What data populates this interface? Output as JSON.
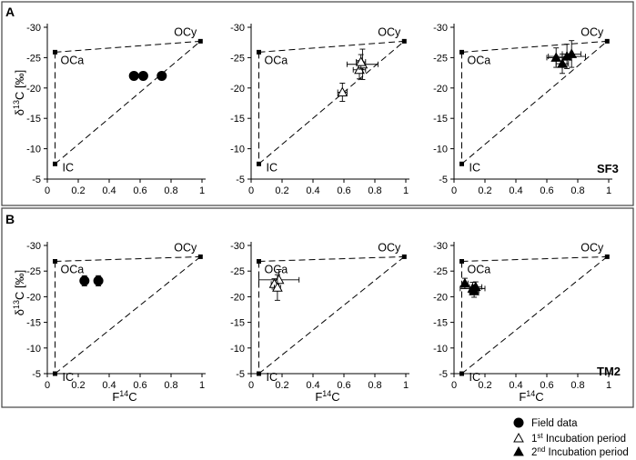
{
  "figure": {
    "panel_labels": [
      "A",
      "B"
    ],
    "site_labels": [
      "SF3",
      "TM2"
    ],
    "endmembers": {
      "oca": "OCa",
      "ocy": "OCy",
      "ic": "IC"
    },
    "x_axis_label": "F14C",
    "y_axis_label": "δ13C [‰]",
    "legend": [
      {
        "label": "Field data",
        "marker": "filled-circle"
      },
      {
        "label": "1st Incubation period",
        "marker": "open-triangle"
      },
      {
        "label": "2nd Incubation period",
        "marker": "filled-triangle"
      }
    ]
  },
  "chart_data": [
    {
      "type": "scatter",
      "row": "A",
      "col": 0,
      "xlim": [
        0,
        1
      ],
      "ylim": [
        -5,
        -30
      ],
      "xticks": [
        0,
        0.2,
        0.4,
        0.6,
        0.8,
        1
      ],
      "yticks": [
        -5,
        -10,
        -15,
        -20,
        -25,
        -30
      ],
      "endmember_points": {
        "OCa": [
          0.05,
          -25.9
        ],
        "OCy": [
          0.99,
          -27.7
        ],
        "IC": [
          0.05,
          -7.5
        ]
      },
      "series": [
        {
          "name": "Field data",
          "marker": "filled-circle",
          "points": [
            {
              "x": 0.56,
              "y": -22.0
            },
            {
              "x": 0.62,
              "y": -22.0
            },
            {
              "x": 0.74,
              "y": -22.0
            }
          ]
        }
      ]
    },
    {
      "type": "scatter",
      "row": "A",
      "col": 1,
      "xlim": [
        0,
        1
      ],
      "ylim": [
        -5,
        -30
      ],
      "xticks": [
        0,
        0.2,
        0.4,
        0.6,
        0.8,
        1
      ],
      "yticks": [
        -5,
        -10,
        -15,
        -20,
        -25,
        -30
      ],
      "endmember_points": {
        "OCa": [
          0.05,
          -25.9
        ],
        "OCy": [
          0.99,
          -27.7
        ],
        "IC": [
          0.05,
          -7.5
        ]
      },
      "series": [
        {
          "name": "1st Incubation period",
          "marker": "open-triangle",
          "points": [
            {
              "x": 0.59,
              "y": -19.3,
              "xerr": 0.03,
              "yerr": 1.5
            },
            {
              "x": 0.7,
              "y": -23.0,
              "xerr": 0.04,
              "yerr": 1.5
            },
            {
              "x": 0.72,
              "y": -23.9,
              "xerr": 0.1,
              "yerr": 2.5
            },
            {
              "x": 0.71,
              "y": -24.3,
              "xerr": 0.03,
              "yerr": 1.2
            }
          ]
        }
      ]
    },
    {
      "type": "scatter",
      "row": "A",
      "col": 2,
      "xlim": [
        0,
        1
      ],
      "ylim": [
        -5,
        -30
      ],
      "xticks": [
        0,
        0.2,
        0.4,
        0.6,
        0.8,
        1
      ],
      "yticks": [
        -5,
        -10,
        -15,
        -20,
        -25,
        -30
      ],
      "endmember_points": {
        "OCa": [
          0.05,
          -25.9
        ],
        "OCy": [
          0.99,
          -27.7
        ],
        "IC": [
          0.05,
          -7.5
        ]
      },
      "series": [
        {
          "name": "2nd Incubation period",
          "marker": "filled-triangle",
          "points": [
            {
              "x": 0.66,
              "y": -25.0,
              "xerr": 0.06,
              "yerr": 1.6
            },
            {
              "x": 0.7,
              "y": -24.0,
              "xerr": 0.04,
              "yerr": 1.6
            },
            {
              "x": 0.73,
              "y": -25.2,
              "xerr": 0.12,
              "yerr": 2.0
            },
            {
              "x": 0.76,
              "y": -25.6,
              "xerr": 0.06,
              "yerr": 2.2
            }
          ]
        }
      ]
    },
    {
      "type": "scatter",
      "row": "B",
      "col": 0,
      "xlim": [
        0,
        1
      ],
      "ylim": [
        -5,
        -30
      ],
      "xticks": [
        0,
        0.2,
        0.4,
        0.6,
        0.8,
        1
      ],
      "yticks": [
        -5,
        -10,
        -15,
        -20,
        -25,
        -30
      ],
      "endmember_points": {
        "OCa": [
          0.05,
          -26.9
        ],
        "OCy": [
          0.99,
          -27.8
        ],
        "IC": [
          0.05,
          -5.0
        ]
      },
      "series": [
        {
          "name": "Field data",
          "marker": "filled-circle",
          "points": [
            {
              "x": 0.24,
              "y": -23.1,
              "xerr": 0.02,
              "yerr": 1.0
            },
            {
              "x": 0.33,
              "y": -23.1,
              "xerr": 0.02,
              "yerr": 1.0
            }
          ]
        }
      ]
    },
    {
      "type": "scatter",
      "row": "B",
      "col": 1,
      "xlim": [
        0,
        1
      ],
      "ylim": [
        -5,
        -30
      ],
      "xticks": [
        0,
        0.2,
        0.4,
        0.6,
        0.8,
        1
      ],
      "yticks": [
        -5,
        -10,
        -15,
        -20,
        -25,
        -30
      ],
      "endmember_points": {
        "OCa": [
          0.05,
          -26.9
        ],
        "OCy": [
          0.99,
          -27.8
        ],
        "IC": [
          0.05,
          -5.0
        ]
      },
      "series": [
        {
          "name": "1st Incubation period",
          "marker": "open-triangle",
          "points": [
            {
              "x": 0.18,
              "y": -23.3,
              "xerr": 0.13,
              "yerr": 2.0
            },
            {
              "x": 0.15,
              "y": -22.5,
              "xerr": 0.02,
              "yerr": 1.0
            },
            {
              "x": 0.17,
              "y": -21.8,
              "xerr": 0.02,
              "yerr": 2.5
            }
          ]
        }
      ]
    },
    {
      "type": "scatter",
      "row": "B",
      "col": 2,
      "xlim": [
        0,
        1
      ],
      "ylim": [
        -5,
        -30
      ],
      "xticks": [
        0,
        0.2,
        0.4,
        0.6,
        0.8,
        1
      ],
      "yticks": [
        -5,
        -10,
        -15,
        -20,
        -25,
        -30
      ],
      "endmember_points": {
        "OCa": [
          0.05,
          -26.9
        ],
        "OCy": [
          0.99,
          -27.8
        ],
        "IC": [
          0.05,
          -5.0
        ]
      },
      "series": [
        {
          "name": "2nd Incubation period",
          "marker": "filled-triangle",
          "points": [
            {
              "x": 0.07,
              "y": -22.6,
              "xerr": 0.02,
              "yerr": 1.0
            },
            {
              "x": 0.12,
              "y": -21.6,
              "xerr": 0.08,
              "yerr": 1.2
            },
            {
              "x": 0.13,
              "y": -21.1,
              "xerr": 0.03,
              "yerr": 1.2
            },
            {
              "x": 0.14,
              "y": -21.9,
              "xerr": 0.04,
              "yerr": 1.0
            }
          ]
        }
      ]
    }
  ]
}
